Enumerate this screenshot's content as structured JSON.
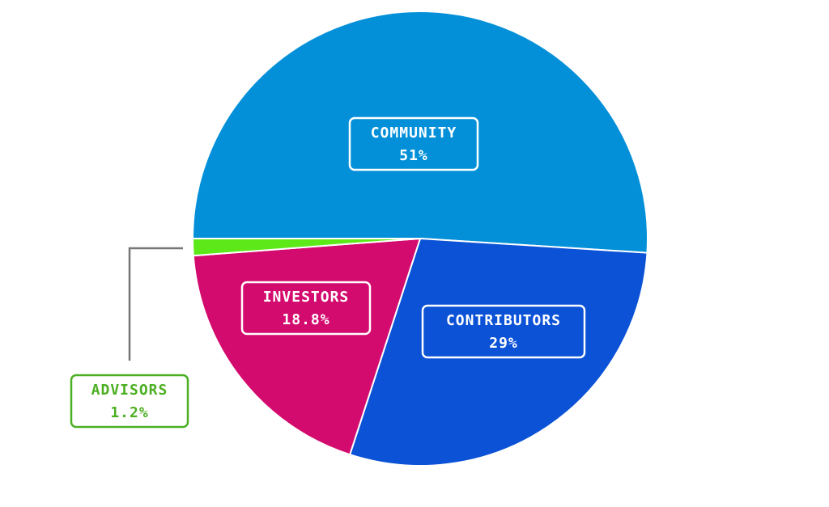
{
  "chart_data": {
    "type": "pie",
    "categories": [
      "COMMUNITY",
      "CONTRIBUTORS",
      "INVESTORS",
      "ADVISORS"
    ],
    "values": [
      51,
      29,
      18.8,
      1.2
    ],
    "value_labels": [
      "51%",
      "29%",
      "18.8%",
      "1.2%"
    ],
    "colors": [
      "#0390d9",
      "#0b52d6",
      "#d40b6e",
      "#5de81a"
    ]
  }
}
